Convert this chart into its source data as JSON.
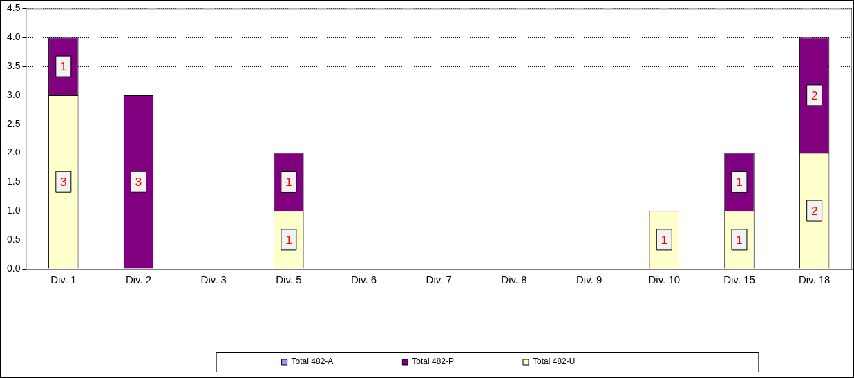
{
  "chart_data": {
    "type": "bar",
    "stacked": true,
    "categories": [
      "Div. 1",
      "Div. 2",
      "Div. 3",
      "Div. 5",
      "Div. 6",
      "Div. 7",
      "Div. 8",
      "Div. 9",
      "Div. 10",
      "Div. 15",
      "Div. 18"
    ],
    "series": [
      {
        "name": "Total 482-U",
        "color": "#ffffcc",
        "values": [
          3,
          0,
          0,
          1,
          0,
          0,
          0,
          0,
          1,
          1,
          2
        ],
        "value_labels": [
          "3",
          null,
          null,
          "1",
          null,
          null,
          null,
          null,
          "1",
          "1",
          "2"
        ]
      },
      {
        "name": "Total 482-P",
        "color": "#800080",
        "values": [
          1,
          3,
          0,
          1,
          0,
          0,
          0,
          0,
          0,
          1,
          2
        ],
        "value_labels": [
          "1",
          "3",
          null,
          "1",
          null,
          null,
          null,
          null,
          null,
          "1",
          "2"
        ]
      },
      {
        "name": "Total 482-A",
        "color": "#9999ff",
        "values": [
          0,
          0,
          0,
          0,
          0,
          0,
          0,
          0,
          0,
          0,
          0
        ]
      }
    ],
    "ylim": [
      0,
      4.5
    ],
    "yticks": [
      {
        "value": 0,
        "label": "0.0"
      },
      {
        "value": 0.5,
        "label": "0.5"
      },
      {
        "value": 1,
        "label": "1.0"
      },
      {
        "value": 1.5,
        "label": "1.5"
      },
      {
        "value": 2,
        "label": "2.0"
      },
      {
        "value": 2.5,
        "label": "2.5"
      },
      {
        "value": 3,
        "label": "3.0"
      },
      {
        "value": 3.5,
        "label": "3.5"
      },
      {
        "value": 4,
        "label": "4.0"
      },
      {
        "value": 4.5,
        "label": "4.5"
      }
    ],
    "grid": "y",
    "legend": "bottom"
  }
}
